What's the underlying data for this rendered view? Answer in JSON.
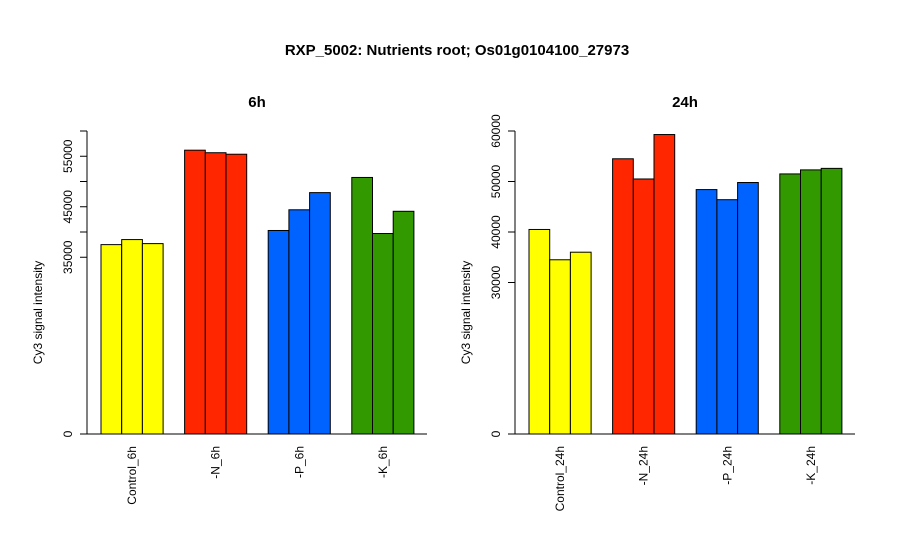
{
  "figure": {
    "title": "RXP_5002: Nutrients root; Os01g0104100_27973"
  },
  "chart_data": [
    {
      "type": "bar",
      "title": "6h",
      "xlabel": "",
      "ylabel": "Cy3 signal intensity",
      "ylim": [
        0,
        60000
      ],
      "yticks": [
        0,
        35000,
        45000,
        55000
      ],
      "ytick_labels": [
        "0",
        "35000",
        "45000",
        "55000"
      ],
      "yminor_ticks": [
        40000,
        50000,
        60000
      ],
      "grid": false,
      "legend": "none",
      "categories": [
        "Control_6h",
        "-N_6h",
        "-P_6h",
        "-K_6h"
      ],
      "colors": [
        "#ffff00",
        "#ff2600",
        "#0062ff",
        "#339900"
      ],
      "values": [
        [
          37500,
          38500,
          37700
        ],
        [
          56200,
          55700,
          55400
        ],
        [
          40300,
          44400,
          47800
        ],
        [
          50800,
          39700,
          44100
        ]
      ]
    },
    {
      "type": "bar",
      "title": "24h",
      "xlabel": "",
      "ylabel": "Cy3 signal intensity",
      "ylim": [
        0,
        60000
      ],
      "yticks": [
        0,
        30000,
        40000,
        50000,
        60000
      ],
      "ytick_labels": [
        "0",
        "30000",
        "40000",
        "50000",
        "60000"
      ],
      "grid": false,
      "legend": "none",
      "categories": [
        "Control_24h",
        "-N_24h",
        "-P_24h",
        "-K_24h"
      ],
      "colors": [
        "#ffff00",
        "#ff2600",
        "#0062ff",
        "#339900"
      ],
      "values": [
        [
          40500,
          34500,
          36000
        ],
        [
          54500,
          50500,
          59300
        ],
        [
          48400,
          46400,
          49800
        ],
        [
          51500,
          52300,
          52600
        ]
      ]
    }
  ]
}
